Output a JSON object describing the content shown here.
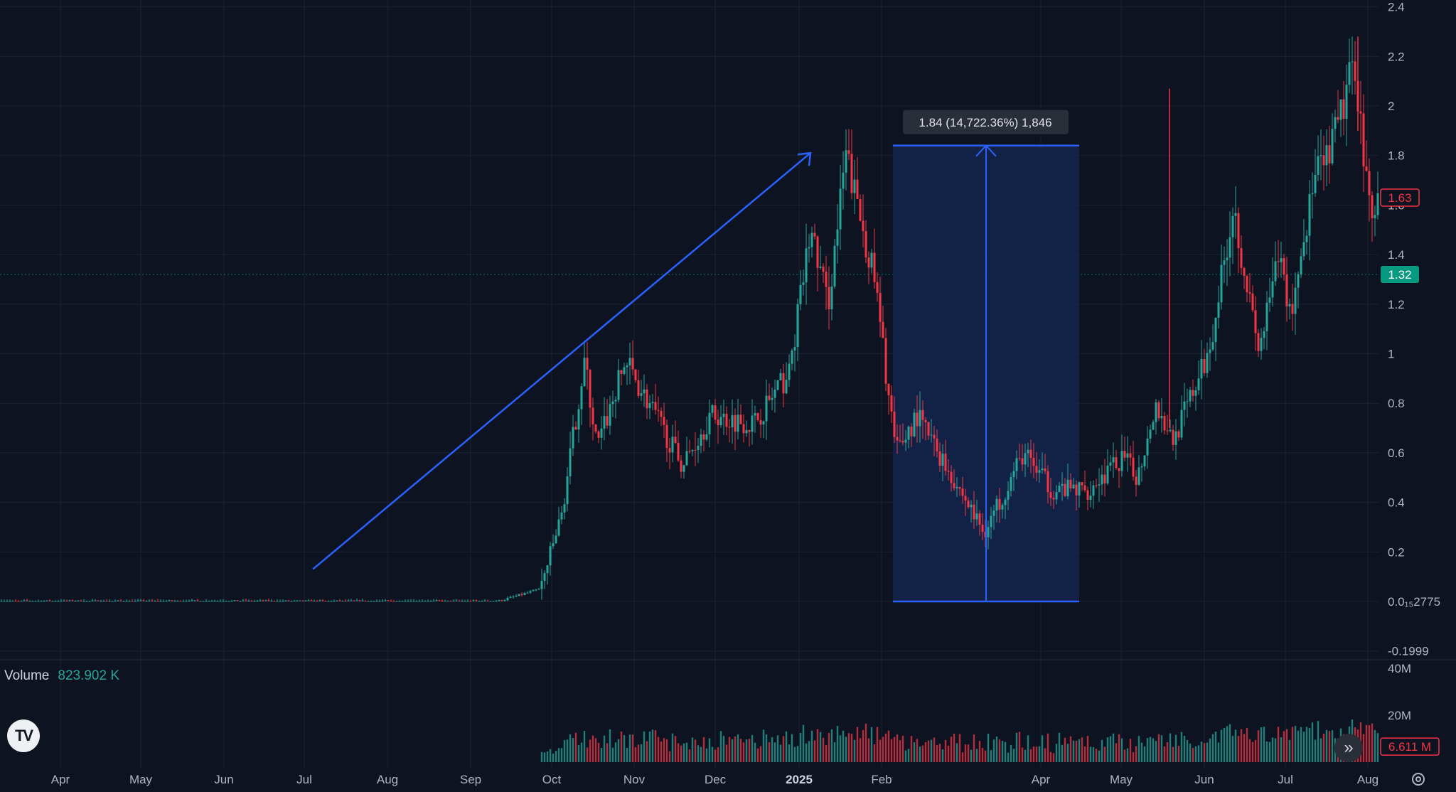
{
  "chart_data": {
    "type": "candlestick",
    "price_axis": {
      "tick_labels": [
        "2.4",
        "2.2",
        "2",
        "1.8",
        "1.6",
        "1.4",
        "1.2",
        "1",
        "0.8",
        "0.6",
        "0.4",
        "0.2",
        "0.0₁₅2775",
        "-0.1999"
      ],
      "tick_values": [
        2.4,
        2.2,
        2.0,
        1.8,
        1.6,
        1.4,
        1.2,
        1.0,
        0.8,
        0.6,
        0.4,
        0.2,
        0.0,
        -0.2
      ],
      "ylim": [
        -0.2,
        2.44
      ]
    },
    "time_axis": {
      "tick_labels": [
        "Apr",
        "May",
        "Jun",
        "Jul",
        "Aug",
        "Sep",
        "Oct",
        "Nov",
        "Dec",
        "2025",
        "Feb",
        "Apr",
        "May",
        "Jun",
        "Jul",
        "Aug"
      ],
      "bold_label": "2025"
    },
    "price_badges": [
      {
        "label": "1.63",
        "value": 1.63,
        "style": "outline",
        "color": "#f23645"
      },
      {
        "label": "1.32",
        "value": 1.32,
        "style": "filled",
        "color": "#089981"
      }
    ],
    "measurement": {
      "label": "1.84 (14,722.36%) 1,846",
      "from_value": 0.0,
      "to_value": 1.84
    },
    "key_prices": {
      "flat_base": 0.0,
      "sep_breakout": 0.05,
      "oct_peak": 0.97,
      "jan_peak": 1.8,
      "march_low": 0.28,
      "may_spike": 2.07,
      "late_july_high": 2.28,
      "last": 1.63
    },
    "volume": {
      "label": "Volume",
      "value_label": "823.902 K",
      "axis_labels": [
        "40M",
        "20M"
      ],
      "axis_values": [
        40,
        20
      ],
      "badge_label": "6.611 M",
      "unit": "M"
    }
  },
  "colors": {
    "background": "#0d1320",
    "grid": "#1b2230",
    "up": "#26a69a",
    "down": "#f23645",
    "drawing": "#2962ff",
    "measure_fill": "#14244d"
  },
  "icons": {
    "logo": "tradingview-logo-icon",
    "scroll": "double-chevron-right-icon",
    "settings": "gear-icon"
  },
  "logo_text": "TV",
  "scroll_glyph": "»"
}
